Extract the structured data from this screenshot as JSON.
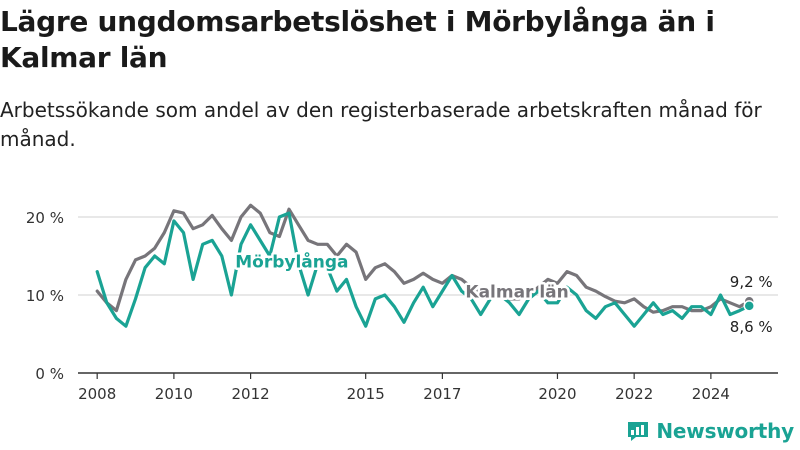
{
  "header": {
    "title": "Lägre ungdomsarbetslöshet i Mörbylånga än i Kalmar län",
    "subtitle": "Arbetssökande som andel av den registerbaserade arbetskraften månad för månad."
  },
  "brand": {
    "name": "Newsworthy",
    "icon": "bar-chart-logo-icon"
  },
  "chart_data": {
    "type": "line",
    "title": "",
    "xlabel": "",
    "ylabel": "",
    "grid": true,
    "xlim": [
      2007.5,
      2025.75
    ],
    "ylim": [
      0,
      20
    ],
    "x_ticks": [
      2008,
      2010,
      2012,
      2015,
      2017,
      2020,
      2022,
      2024
    ],
    "x_tick_labels": [
      "2008",
      "2010",
      "2012",
      "2015",
      "2017",
      "2020",
      "2022",
      "2024"
    ],
    "y_ticks": [
      0,
      10,
      20
    ],
    "y_tick_labels": [
      "0 %",
      "10 %",
      "20 %"
    ],
    "colors": {
      "Kalmar län": "#77757a",
      "Mörbylånga": "#1aa394",
      "grid": "#d0d0d0",
      "axis": "#333333"
    },
    "series": [
      {
        "name": "Kalmar län",
        "color": "#77757a",
        "end_label": "9,2 %",
        "x": [
          2008.0,
          2008.25,
          2008.5,
          2008.75,
          2009.0,
          2009.25,
          2009.5,
          2009.75,
          2010.0,
          2010.25,
          2010.5,
          2010.75,
          2011.0,
          2011.25,
          2011.5,
          2011.75,
          2012.0,
          2012.25,
          2012.5,
          2012.75,
          2013.0,
          2013.25,
          2013.5,
          2013.75,
          2014.0,
          2014.25,
          2014.5,
          2014.75,
          2015.0,
          2015.25,
          2015.5,
          2015.75,
          2016.0,
          2016.25,
          2016.5,
          2016.75,
          2017.0,
          2017.25,
          2017.5,
          2017.75,
          2018.0,
          2018.25,
          2018.5,
          2018.75,
          2019.0,
          2019.25,
          2019.5,
          2019.75,
          2020.0,
          2020.25,
          2020.5,
          2020.75,
          2021.0,
          2021.25,
          2021.5,
          2021.75,
          2022.0,
          2022.25,
          2022.5,
          2022.75,
          2023.0,
          2023.25,
          2023.5,
          2023.75,
          2024.0,
          2024.25,
          2024.5,
          2024.75,
          2025.0
        ],
        "values": [
          10.5,
          9.0,
          8.0,
          12.0,
          14.5,
          15.0,
          16.0,
          18.0,
          20.8,
          20.5,
          18.5,
          19.0,
          20.2,
          18.5,
          17.0,
          20.0,
          21.5,
          20.5,
          18.0,
          17.5,
          21.0,
          19.0,
          17.0,
          16.5,
          16.5,
          15.0,
          16.5,
          15.5,
          12.0,
          13.5,
          14.0,
          13.0,
          11.5,
          12.0,
          12.8,
          12.0,
          11.5,
          12.5,
          12.0,
          11.0,
          10.5,
          9.5,
          10.0,
          9.5,
          9.5,
          10.0,
          11.0,
          12.0,
          11.5,
          13.0,
          12.5,
          11.0,
          10.5,
          9.8,
          9.2,
          9.0,
          9.5,
          8.5,
          7.8,
          8.0,
          8.5,
          8.5,
          8.0,
          8.0,
          8.5,
          9.5,
          9.0,
          8.5,
          9.2
        ]
      },
      {
        "name": "Mörbylånga",
        "color": "#1aa394",
        "end_label": "8,6 %",
        "x": [
          2008.0,
          2008.25,
          2008.5,
          2008.75,
          2009.0,
          2009.25,
          2009.5,
          2009.75,
          2010.0,
          2010.25,
          2010.5,
          2010.75,
          2011.0,
          2011.25,
          2011.5,
          2011.75,
          2012.0,
          2012.25,
          2012.5,
          2012.75,
          2013.0,
          2013.25,
          2013.5,
          2013.75,
          2014.0,
          2014.25,
          2014.5,
          2014.75,
          2015.0,
          2015.25,
          2015.5,
          2015.75,
          2016.0,
          2016.25,
          2016.5,
          2016.75,
          2017.0,
          2017.25,
          2017.5,
          2017.75,
          2018.0,
          2018.25,
          2018.5,
          2018.75,
          2019.0,
          2019.25,
          2019.5,
          2019.75,
          2020.0,
          2020.25,
          2020.5,
          2020.75,
          2021.0,
          2021.25,
          2021.5,
          2021.75,
          2022.0,
          2022.25,
          2022.5,
          2022.75,
          2023.0,
          2023.25,
          2023.5,
          2023.75,
          2024.0,
          2024.25,
          2024.5,
          2024.75,
          2025.0
        ],
        "values": [
          13.0,
          9.0,
          7.0,
          6.0,
          9.5,
          13.5,
          15.0,
          14.0,
          19.5,
          18.0,
          12.0,
          16.5,
          17.0,
          15.0,
          10.0,
          16.5,
          19.0,
          17.0,
          15.0,
          20.0,
          20.5,
          14.0,
          10.0,
          14.0,
          13.5,
          10.5,
          12.0,
          8.5,
          6.0,
          9.5,
          10.0,
          8.5,
          6.5,
          9.0,
          11.0,
          8.5,
          10.5,
          12.5,
          10.5,
          9.5,
          7.5,
          9.5,
          10.0,
          9.0,
          7.5,
          9.5,
          10.5,
          9.0,
          9.0,
          11.0,
          10.0,
          8.0,
          7.0,
          8.5,
          9.0,
          7.5,
          6.0,
          7.5,
          9.0,
          7.5,
          8.0,
          7.0,
          8.5,
          8.5,
          7.5,
          10.0,
          7.5,
          8.0,
          8.6
        ]
      }
    ],
    "annotations": [
      {
        "text": "Mörbylånga",
        "series": "Mörbylånga",
        "x": 2011.6,
        "y": 13.5
      },
      {
        "text": "Kalmar län",
        "series": "Kalmar län",
        "x": 2017.6,
        "y": 9.7
      }
    ]
  }
}
